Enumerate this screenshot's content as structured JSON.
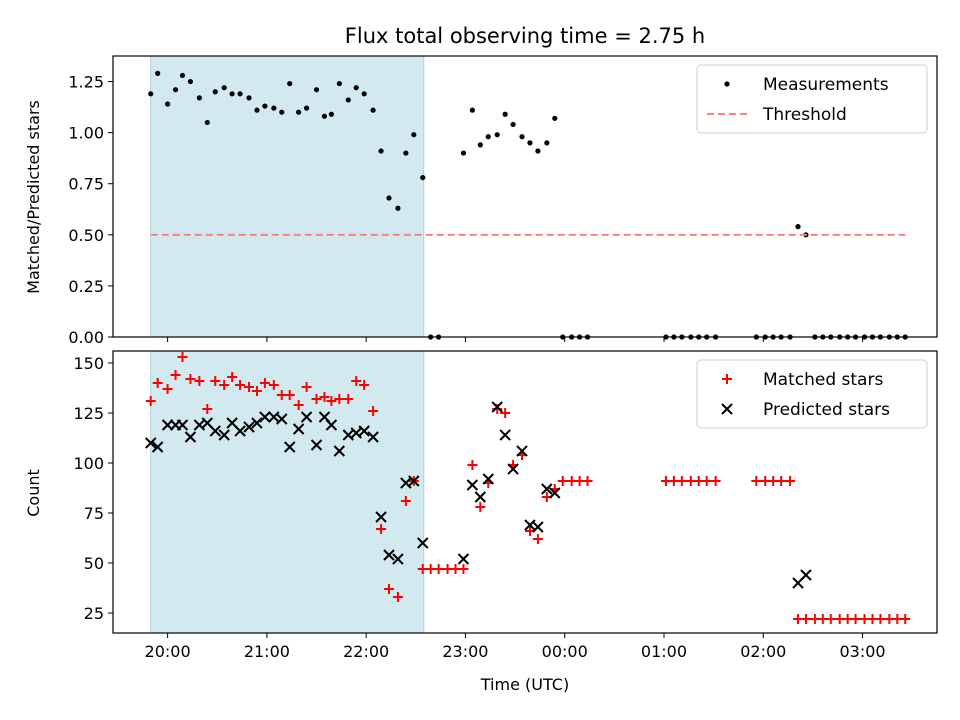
{
  "chart_data": [
    {
      "type": "scatter",
      "title": "Flux total observing time = 2.75 h",
      "xlabel": "",
      "ylabel": "Matched/Predicted stars",
      "x_unit": "hours after 00:00 UTC (negative = previous evening)",
      "xlim": [
        -4.55,
        3.75
      ],
      "ylim": [
        0,
        1.375
      ],
      "yticks": [
        "0.00",
        "0.25",
        "0.50",
        "0.75",
        "1.00",
        "1.25"
      ],
      "ytick_values": [
        0,
        0.25,
        0.5,
        0.75,
        1.0,
        1.25
      ],
      "shaded_span": [
        -4.17,
        -1.42
      ],
      "shade_color": "#d3e9f0",
      "legend_position": "upper right",
      "legend": [
        "Measurements",
        "Threshold"
      ],
      "series": [
        {
          "name": "Measurements",
          "marker": "dot",
          "color": "#000000",
          "points": [
            [
              -4.17,
              1.19
            ],
            [
              -4.1,
              1.29
            ],
            [
              -4.0,
              1.14
            ],
            [
              -3.92,
              1.21
            ],
            [
              -3.85,
              1.28
            ],
            [
              -3.77,
              1.25
            ],
            [
              -3.68,
              1.17
            ],
            [
              -3.6,
              1.05
            ],
            [
              -3.52,
              1.2
            ],
            [
              -3.43,
              1.22
            ],
            [
              -3.35,
              1.19
            ],
            [
              -3.27,
              1.19
            ],
            [
              -3.18,
              1.17
            ],
            [
              -3.1,
              1.11
            ],
            [
              -3.02,
              1.13
            ],
            [
              -2.93,
              1.12
            ],
            [
              -2.85,
              1.1
            ],
            [
              -2.77,
              1.24
            ],
            [
              -2.68,
              1.1
            ],
            [
              -2.6,
              1.12
            ],
            [
              -2.5,
              1.21
            ],
            [
              -2.42,
              1.08
            ],
            [
              -2.35,
              1.09
            ],
            [
              -2.27,
              1.24
            ],
            [
              -2.18,
              1.16
            ],
            [
              -2.1,
              1.22
            ],
            [
              -2.02,
              1.19
            ],
            [
              -1.93,
              1.11
            ],
            [
              -1.85,
              0.91
            ],
            [
              -1.77,
              0.68
            ],
            [
              -1.68,
              0.63
            ],
            [
              -1.6,
              0.9
            ],
            [
              -1.52,
              0.99
            ],
            [
              -1.43,
              0.78
            ],
            [
              -1.35,
              0.0
            ],
            [
              -1.27,
              0.0
            ],
            [
              -1.02,
              0.9
            ],
            [
              -0.93,
              1.11
            ],
            [
              -0.85,
              0.94
            ],
            [
              -0.77,
              0.98
            ],
            [
              -0.68,
              0.99
            ],
            [
              -0.6,
              1.09
            ],
            [
              -0.52,
              1.04
            ],
            [
              -0.43,
              0.98
            ],
            [
              -0.35,
              0.95
            ],
            [
              -0.27,
              0.91
            ],
            [
              -0.18,
              0.95
            ],
            [
              -0.1,
              1.07
            ],
            [
              -0.02,
              0.0
            ],
            [
              0.07,
              0.0
            ],
            [
              0.15,
              0.0
            ],
            [
              0.23,
              0.0
            ],
            [
              1.02,
              0.0
            ],
            [
              1.1,
              0.0
            ],
            [
              1.18,
              0.0
            ],
            [
              1.27,
              0.0
            ],
            [
              1.35,
              0.0
            ],
            [
              1.43,
              0.0
            ],
            [
              1.52,
              0.0
            ],
            [
              1.93,
              0.0
            ],
            [
              2.02,
              0.0
            ],
            [
              2.1,
              0.0
            ],
            [
              2.18,
              0.0
            ],
            [
              2.27,
              0.0
            ],
            [
              2.35,
              0.54
            ],
            [
              2.43,
              0.5
            ],
            [
              2.52,
              0.0
            ],
            [
              2.6,
              0.0
            ],
            [
              2.68,
              0.0
            ],
            [
              2.77,
              0.0
            ],
            [
              2.85,
              0.0
            ],
            [
              2.93,
              0.0
            ],
            [
              3.02,
              0.0
            ],
            [
              3.1,
              0.0
            ],
            [
              3.18,
              0.0
            ],
            [
              3.27,
              0.0
            ],
            [
              3.35,
              0.0
            ],
            [
              3.43,
              0.0
            ]
          ]
        },
        {
          "name": "Threshold",
          "marker": "dashed-line",
          "color": "#ff7f7f",
          "points": [
            [
              -4.17,
              0.5
            ],
            [
              3.43,
              0.5
            ]
          ]
        }
      ]
    },
    {
      "type": "scatter",
      "title": "",
      "xlabel": "Time (UTC)",
      "ylabel": "Count",
      "x_unit": "hours after 00:00 UTC (negative = previous evening)",
      "xlim": [
        -4.55,
        3.75
      ],
      "ylim": [
        15,
        156
      ],
      "yticks": [
        "25",
        "50",
        "75",
        "100",
        "125",
        "150"
      ],
      "ytick_values": [
        25,
        50,
        75,
        100,
        125,
        150
      ],
      "xticks": [
        "20:00",
        "21:00",
        "22:00",
        "23:00",
        "00:00",
        "01:00",
        "02:00",
        "03:00"
      ],
      "xtick_values": [
        -4,
        -3,
        -2,
        -1,
        0,
        1,
        2,
        3
      ],
      "shaded_span": [
        -4.17,
        -1.42
      ],
      "shade_color": "#d3e9f0",
      "legend_position": "upper right",
      "legend": [
        "Matched stars",
        "Predicted stars"
      ],
      "series": [
        {
          "name": "Matched stars",
          "marker": "plus",
          "color": "#ff0000",
          "points": [
            [
              -4.17,
              131
            ],
            [
              -4.1,
              140
            ],
            [
              -4.0,
              137
            ],
            [
              -3.92,
              144
            ],
            [
              -3.85,
              153
            ],
            [
              -3.77,
              142
            ],
            [
              -3.68,
              141
            ],
            [
              -3.6,
              127
            ],
            [
              -3.52,
              141
            ],
            [
              -3.43,
              139
            ],
            [
              -3.35,
              143
            ],
            [
              -3.27,
              139
            ],
            [
              -3.18,
              138
            ],
            [
              -3.1,
              136
            ],
            [
              -3.02,
              140
            ],
            [
              -2.93,
              139
            ],
            [
              -2.85,
              134
            ],
            [
              -2.77,
              134
            ],
            [
              -2.68,
              129
            ],
            [
              -2.6,
              138
            ],
            [
              -2.5,
              132
            ],
            [
              -2.42,
              133
            ],
            [
              -2.35,
              131
            ],
            [
              -2.27,
              132
            ],
            [
              -2.18,
              132
            ],
            [
              -2.1,
              141
            ],
            [
              -2.02,
              139
            ],
            [
              -1.93,
              126
            ],
            [
              -1.85,
              67
            ],
            [
              -1.77,
              37
            ],
            [
              -1.68,
              33
            ],
            [
              -1.6,
              81
            ],
            [
              -1.52,
              91
            ],
            [
              -1.43,
              47
            ],
            [
              -1.35,
              47
            ],
            [
              -1.27,
              47
            ],
            [
              -1.18,
              47
            ],
            [
              -1.1,
              47
            ],
            [
              -1.02,
              47
            ],
            [
              -0.93,
              99
            ],
            [
              -0.85,
              78
            ],
            [
              -0.77,
              90
            ],
            [
              -0.68,
              127
            ],
            [
              -0.6,
              125
            ],
            [
              -0.52,
              99
            ],
            [
              -0.43,
              104
            ],
            [
              -0.35,
              66
            ],
            [
              -0.27,
              62
            ],
            [
              -0.18,
              83
            ],
            [
              -0.1,
              87
            ],
            [
              -0.02,
              91
            ],
            [
              0.07,
              91
            ],
            [
              0.15,
              91
            ],
            [
              0.23,
              91
            ],
            [
              1.02,
              91
            ],
            [
              1.1,
              91
            ],
            [
              1.18,
              91
            ],
            [
              1.27,
              91
            ],
            [
              1.35,
              91
            ],
            [
              1.43,
              91
            ],
            [
              1.52,
              91
            ],
            [
              1.93,
              91
            ],
            [
              2.02,
              91
            ],
            [
              2.1,
              91
            ],
            [
              2.18,
              91
            ],
            [
              2.27,
              91
            ],
            [
              2.35,
              22
            ],
            [
              2.43,
              22
            ],
            [
              2.52,
              22
            ],
            [
              2.6,
              22
            ],
            [
              2.68,
              22
            ],
            [
              2.77,
              22
            ],
            [
              2.85,
              22
            ],
            [
              2.93,
              22
            ],
            [
              3.02,
              22
            ],
            [
              3.1,
              22
            ],
            [
              3.18,
              22
            ],
            [
              3.27,
              22
            ],
            [
              3.35,
              22
            ],
            [
              3.43,
              22
            ]
          ]
        },
        {
          "name": "Predicted stars",
          "marker": "x",
          "color": "#000000",
          "points": [
            [
              -4.17,
              110
            ],
            [
              -4.1,
              108
            ],
            [
              -4.0,
              119
            ],
            [
              -3.92,
              119
            ],
            [
              -3.85,
              119
            ],
            [
              -3.77,
              113
            ],
            [
              -3.68,
              119
            ],
            [
              -3.6,
              120
            ],
            [
              -3.52,
              116
            ],
            [
              -3.43,
              114
            ],
            [
              -3.35,
              120
            ],
            [
              -3.27,
              116
            ],
            [
              -3.18,
              118
            ],
            [
              -3.1,
              120
            ],
            [
              -3.02,
              123
            ],
            [
              -2.93,
              123
            ],
            [
              -2.85,
              122
            ],
            [
              -2.77,
              108
            ],
            [
              -2.68,
              117
            ],
            [
              -2.6,
              123
            ],
            [
              -2.5,
              109
            ],
            [
              -2.42,
              123
            ],
            [
              -2.35,
              119
            ],
            [
              -2.27,
              106
            ],
            [
              -2.18,
              114
            ],
            [
              -2.1,
              115
            ],
            [
              -2.02,
              116
            ],
            [
              -1.93,
              113
            ],
            [
              -1.85,
              73
            ],
            [
              -1.77,
              54
            ],
            [
              -1.68,
              52
            ],
            [
              -1.6,
              90
            ],
            [
              -1.52,
              91
            ],
            [
              -1.43,
              60
            ],
            [
              -1.02,
              52
            ],
            [
              -0.93,
              89
            ],
            [
              -0.85,
              83
            ],
            [
              -0.77,
              92
            ],
            [
              -0.68,
              128
            ],
            [
              -0.6,
              114
            ],
            [
              -0.52,
              97
            ],
            [
              -0.43,
              106
            ],
            [
              -0.35,
              69
            ],
            [
              -0.27,
              68
            ],
            [
              -0.18,
              87
            ],
            [
              -0.1,
              85
            ],
            [
              2.35,
              40
            ],
            [
              2.43,
              44
            ]
          ]
        }
      ]
    }
  ]
}
